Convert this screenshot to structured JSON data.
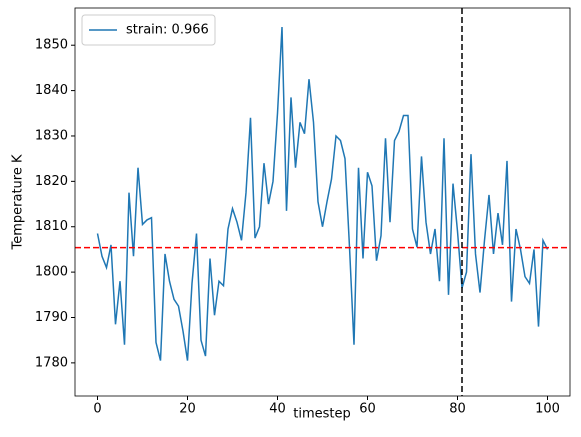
{
  "chart_data": {
    "type": "line",
    "x_label": "timestep",
    "y_label": "Temperature K",
    "x": [
      0,
      1,
      2,
      3,
      4,
      5,
      6,
      7,
      8,
      9,
      10,
      11,
      12,
      13,
      14,
      15,
      16,
      17,
      18,
      19,
      20,
      21,
      22,
      23,
      24,
      25,
      26,
      27,
      28,
      29,
      30,
      31,
      32,
      33,
      34,
      35,
      36,
      37,
      38,
      39,
      40,
      41,
      42,
      43,
      44,
      45,
      46,
      47,
      48,
      49,
      50,
      51,
      52,
      53,
      54,
      55,
      56,
      57,
      58,
      59,
      60,
      61,
      62,
      63,
      64,
      65,
      66,
      67,
      68,
      69,
      70,
      71,
      72,
      73,
      74,
      75,
      76,
      77,
      78,
      79,
      80,
      81,
      82,
      83,
      84,
      85,
      86,
      87,
      88,
      89,
      90,
      91,
      92,
      93,
      94,
      95,
      96,
      97,
      98,
      99,
      100
    ],
    "series": [
      {
        "name": "strain: 0.966",
        "color": "#1f77b4",
        "values": [
          1808.5,
          1803.5,
          1801,
          1806,
          1788.5,
          1798,
          1784,
          1817.5,
          1803.5,
          1823,
          1810.5,
          1811.5,
          1812,
          1784.5,
          1780.5,
          1804,
          1798,
          1794,
          1792.5,
          1787,
          1780.5,
          1797.5,
          1808.5,
          1785,
          1781.5,
          1803,
          1790.5,
          1798,
          1797,
          1809.5,
          1814,
          1811,
          1807,
          1817.5,
          1834,
          1807.5,
          1810,
          1824,
          1815,
          1820,
          1835,
          1854,
          1813.5,
          1838.5,
          1823,
          1833,
          1830.5,
          1842.5,
          1833,
          1815.5,
          1810,
          1815.5,
          1820.5,
          1830,
          1829,
          1825,
          1805.5,
          1784,
          1823,
          1803,
          1822,
          1819,
          1802.5,
          1808,
          1829.5,
          1811,
          1829,
          1831,
          1834.5,
          1834.5,
          1809.5,
          1805.5,
          1825.5,
          1811,
          1804,
          1809.5,
          1798,
          1829.5,
          1795,
          1819.5,
          1809,
          1796.5,
          1800,
          1826,
          1804,
          1795.5,
          1807,
          1817,
          1804,
          1813,
          1806,
          1824.5,
          1793.5,
          1809.5,
          1805,
          1799,
          1797.5,
          1805,
          1788,
          1807,
          1805
        ]
      }
    ],
    "hline": {
      "value": 1805.4,
      "color": "red"
    },
    "vline": {
      "value": 81,
      "color": "black"
    },
    "xlim": [
      -5,
      105
    ],
    "xticks": [
      0,
      20,
      40,
      60,
      80,
      100
    ],
    "ylim": [
      1772.7,
      1858.2
    ],
    "yticks": [
      1780,
      1790,
      1800,
      1810,
      1820,
      1830,
      1840,
      1850
    ],
    "legend": "upper left"
  }
}
